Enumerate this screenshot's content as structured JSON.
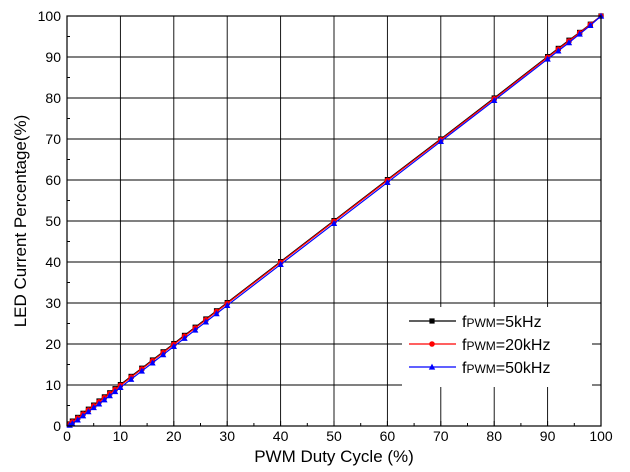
{
  "chart_data": {
    "type": "line",
    "xlabel": "PWM Duty Cycle (%)",
    "ylabel": "LED Current Percentage(%)",
    "xlim": [
      0,
      100
    ],
    "ylim": [
      0,
      100
    ],
    "xticks": [
      "0",
      "10",
      "20",
      "30",
      "40",
      "50",
      "60",
      "70",
      "80",
      "90",
      "100"
    ],
    "yticks": [
      "0",
      "10",
      "20",
      "30",
      "40",
      "50",
      "60",
      "70",
      "80",
      "90",
      "100"
    ],
    "grid": true,
    "legend_position": "bottom-right",
    "x": [
      0.5,
      1,
      2,
      3,
      4,
      5,
      6,
      7,
      8,
      9,
      10,
      12,
      14,
      16,
      18,
      20,
      22,
      24,
      26,
      28,
      30,
      40,
      50,
      60,
      70,
      80,
      90,
      92,
      94,
      96,
      98,
      100
    ],
    "series": [
      {
        "name": "fPWM=5kHz",
        "legend_prefix": "f",
        "legend_subscript": "PWM",
        "legend_suffix": "=5kHz",
        "color": "#000000",
        "marker": "square",
        "values": [
          0.5,
          1.2,
          2.1,
          3.1,
          4.1,
          5.1,
          6.1,
          7.1,
          8.1,
          9.1,
          10.1,
          12.1,
          14.1,
          16.1,
          18.1,
          20.1,
          22.1,
          24.1,
          26.1,
          28.1,
          30.1,
          40.1,
          50.1,
          60.1,
          70,
          80,
          90.1,
          92.1,
          94.1,
          96,
          98,
          100
        ]
      },
      {
        "name": "fPWM=20kHz",
        "legend_prefix": "f",
        "legend_subscript": "PWM",
        "legend_suffix": "=20kHz",
        "color": "#ff0000",
        "marker": "circle",
        "values": [
          0.4,
          1.0,
          1.9,
          2.9,
          3.9,
          4.9,
          5.9,
          6.9,
          7.9,
          8.9,
          9.9,
          11.9,
          13.9,
          15.9,
          17.9,
          19.9,
          21.9,
          23.9,
          25.9,
          27.9,
          29.9,
          39.9,
          49.9,
          59.9,
          69.8,
          79.8,
          89.9,
          91.9,
          93.9,
          95.9,
          97.9,
          100
        ]
      },
      {
        "name": "fPWM=50kHz",
        "legend_prefix": "f",
        "legend_subscript": "PWM",
        "legend_suffix": "=50kHz",
        "color": "#0000ff",
        "marker": "triangle",
        "values": [
          0.2,
          0.6,
          1.5,
          2.5,
          3.5,
          4.5,
          5.4,
          6.4,
          7.4,
          8.4,
          9.4,
          11.4,
          13.4,
          15.4,
          17.4,
          19.4,
          21.4,
          23.4,
          25.4,
          27.4,
          29.4,
          39.4,
          49.4,
          59.4,
          69.4,
          79.4,
          89.5,
          91.5,
          93.5,
          95.6,
          97.7,
          100
        ]
      }
    ]
  }
}
